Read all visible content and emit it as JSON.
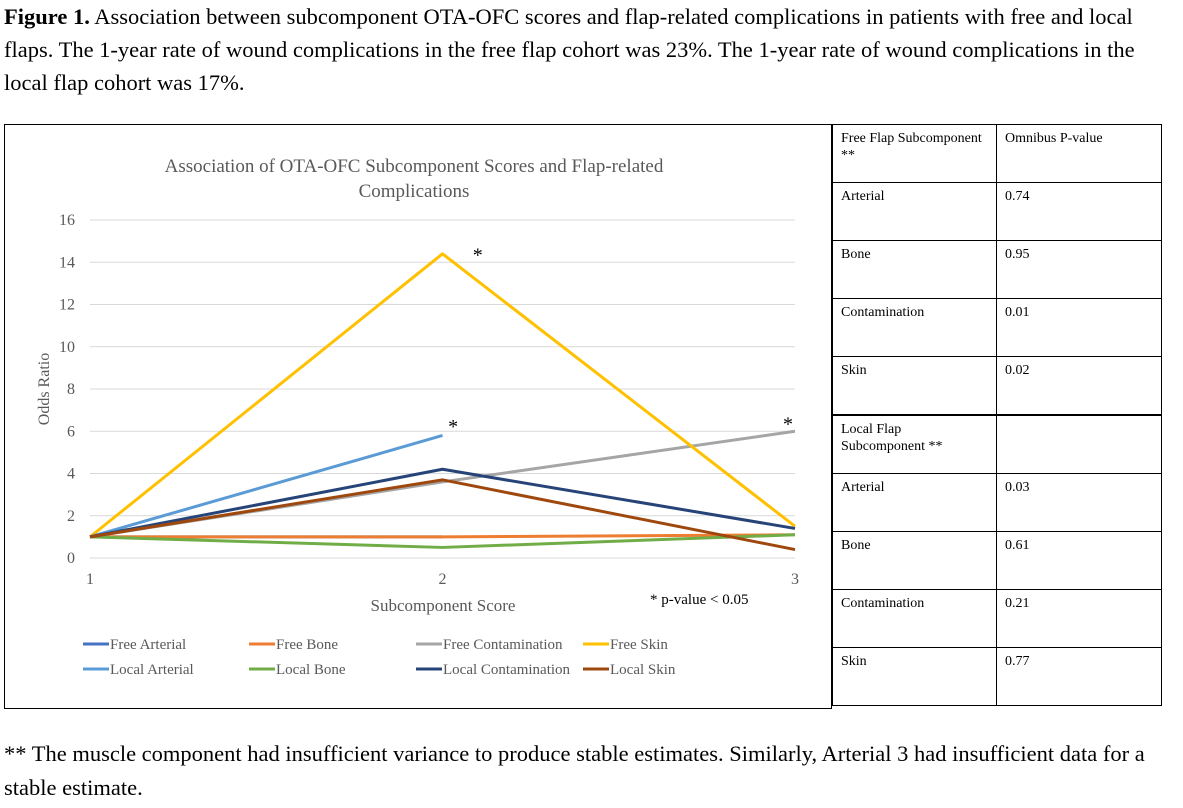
{
  "caption": {
    "label": "Figure 1.",
    "text": " Association between subcomponent OTA-OFC scores and flap-related complications in patients with free and local flaps. The 1-year rate of wound complications in the free flap cohort was 23%. The 1-year rate of wound complications in the local flap cohort was 17%."
  },
  "chart_data": {
    "type": "line",
    "title": "Association of OTA-OFC Subcomponent Scores and Flap-related Complications",
    "xlabel": "Subcomponent Score",
    "ylabel": "Odds Ratio",
    "x": [
      1,
      2,
      3
    ],
    "xticks": [
      "1",
      "2",
      "3"
    ],
    "yticks": [
      "0",
      "2",
      "4",
      "6",
      "8",
      "10",
      "12",
      "14",
      "16"
    ],
    "ylim": [
      0,
      16
    ],
    "grid": true,
    "legend_position": "bottom",
    "annotation": "* p-value < 0.05",
    "significance_marks": [
      {
        "x": 2.1,
        "y": 14.5,
        "text": "*"
      },
      {
        "x": 2.03,
        "y": 6.4,
        "text": "*"
      },
      {
        "x": 2.98,
        "y": 6.5,
        "text": "*"
      }
    ],
    "series": [
      {
        "name": "Free Arterial",
        "color": "#4472c4",
        "values": [
          1,
          1,
          null
        ]
      },
      {
        "name": "Free Bone",
        "color": "#ed7d31",
        "values": [
          1,
          1,
          1.1
        ]
      },
      {
        "name": "Free Contamination",
        "color": "#a5a5a5",
        "values": [
          1,
          3.6,
          6.0
        ]
      },
      {
        "name": "Free Skin",
        "color": "#ffc000",
        "values": [
          1,
          14.4,
          1.5
        ]
      },
      {
        "name": "Local Arterial",
        "color": "#5b9bd5",
        "values": [
          1,
          5.8,
          null
        ]
      },
      {
        "name": "Local Bone",
        "color": "#70ad47",
        "values": [
          1,
          0.5,
          1.1
        ]
      },
      {
        "name": "Local Contamination",
        "color": "#264478",
        "values": [
          1,
          4.2,
          1.4
        ]
      },
      {
        "name": "Local Skin",
        "color": "#9e480e",
        "values": [
          1,
          3.7,
          0.4
        ]
      }
    ]
  },
  "table": {
    "header": {
      "col1": "Free Flap Subcomponent **",
      "col2": "Omnibus P-value"
    },
    "rows": [
      {
        "label": "Arterial",
        "value": "0.74"
      },
      {
        "label": "Bone",
        "value": "0.95"
      },
      {
        "label": "Contamination",
        "value": "0.01"
      },
      {
        "label": "Skin",
        "value": "0.02"
      },
      {
        "label": "Local Flap Subcomponent **",
        "value": ""
      },
      {
        "label": "Arterial",
        "value": "0.03"
      },
      {
        "label": "Bone",
        "value": "0.61"
      },
      {
        "label": "Contamination",
        "value": "0.21"
      },
      {
        "label": "Skin",
        "value": "0.77"
      }
    ]
  },
  "footnote": "** The muscle component had insufficient variance to produce stable estimates. Similarly, Arterial 3 had insufficient data for a stable estimate."
}
